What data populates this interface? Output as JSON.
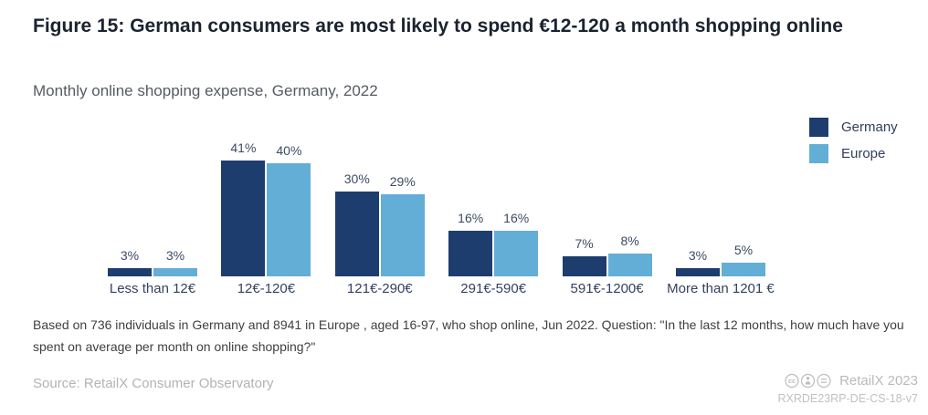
{
  "header": {
    "title": "Figure 15: German consumers are most likely to spend €12-120 a month shopping online",
    "subtitle": "Monthly online shopping expense, Germany, 2022"
  },
  "chart_data": {
    "type": "bar",
    "title": "Monthly online shopping expense, Germany, 2022",
    "categories": [
      "Less than 12€",
      "12€-120€",
      "121€-290€",
      "291€-590€",
      "591€-1200€",
      "More than 1201 €"
    ],
    "series": [
      {
        "name": "Germany",
        "color": "#1e3d6f",
        "values": [
          3,
          41,
          30,
          16,
          7,
          3
        ]
      },
      {
        "name": "Europe",
        "color": "#63aed6",
        "values": [
          3,
          40,
          29,
          16,
          8,
          5
        ]
      }
    ],
    "value_suffix": "%",
    "ylim": [
      0,
      45
    ],
    "grid": false,
    "axes_visible": false,
    "legend_position": "top-right",
    "value_labels": "above-bars"
  },
  "footnote": {
    "text": "Based on 736 individuals in Germany and 8941 in Europe , aged 16-97, who shop online, Jun 2022. Question: \"In the last 12 months, how much have you spent on average per month on online shopping?\""
  },
  "footer": {
    "source": "Source: RetailX Consumer Observatory",
    "brand": "RetailX 2023",
    "code": "RXRDE23RP-DE-CS-18-v7",
    "license_icons": [
      "cc-icon",
      "attribution-icon",
      "no-derivatives-icon"
    ]
  }
}
